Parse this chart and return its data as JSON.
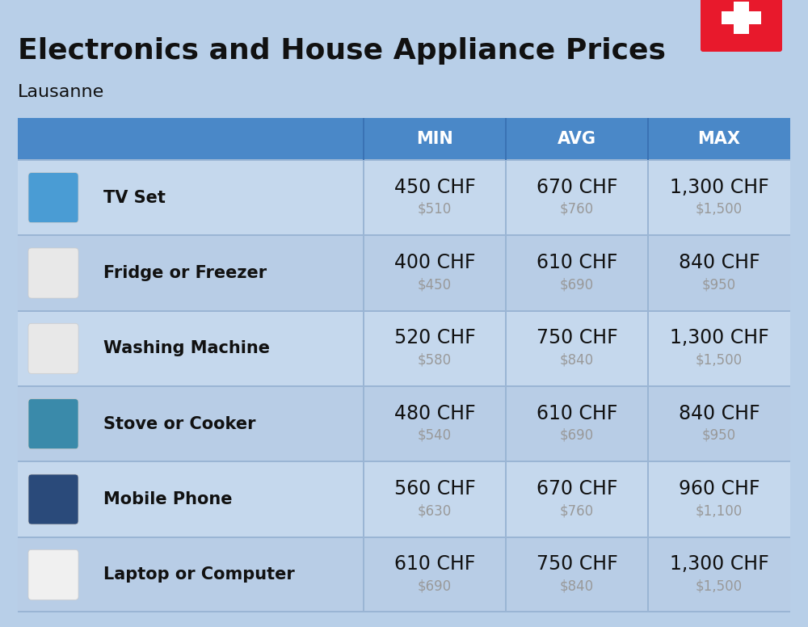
{
  "title": "Electronics and House Appliance Prices",
  "subtitle": "Lausanne",
  "background_color": "#b8cfe8",
  "header_color": "#4a88c8",
  "header_text_color": "#ffffff",
  "row_colors": [
    "#c5d8ed",
    "#b8cde6"
  ],
  "divider_color": "#9ab5d4",
  "text_dark": "#111111",
  "text_gray": "#999999",
  "columns": [
    "MIN",
    "AVG",
    "MAX"
  ],
  "rows": [
    {
      "label": "TV Set",
      "min_chf": "450 CHF",
      "min_usd": "$510",
      "avg_chf": "670 CHF",
      "avg_usd": "$760",
      "max_chf": "1,300 CHF",
      "max_usd": "$1,500"
    },
    {
      "label": "Fridge or Freezer",
      "min_chf": "400 CHF",
      "min_usd": "$450",
      "avg_chf": "610 CHF",
      "avg_usd": "$690",
      "max_chf": "840 CHF",
      "max_usd": "$950"
    },
    {
      "label": "Washing Machine",
      "min_chf": "520 CHF",
      "min_usd": "$580",
      "avg_chf": "750 CHF",
      "avg_usd": "$840",
      "max_chf": "1,300 CHF",
      "max_usd": "$1,500"
    },
    {
      "label": "Stove or Cooker",
      "min_chf": "480 CHF",
      "min_usd": "$540",
      "avg_chf": "610 CHF",
      "avg_usd": "$690",
      "max_chf": "840 CHF",
      "max_usd": "$950"
    },
    {
      "label": "Mobile Phone",
      "min_chf": "560 CHF",
      "min_usd": "$630",
      "avg_chf": "670 CHF",
      "avg_usd": "$760",
      "max_chf": "960 CHF",
      "max_usd": "$1,100"
    },
    {
      "label": "Laptop or Computer",
      "min_chf": "610 CHF",
      "min_usd": "$690",
      "avg_chf": "750 CHF",
      "avg_usd": "$840",
      "max_chf": "1,300 CHF",
      "max_usd": "$1,500"
    }
  ],
  "flag_color": "#e8192c",
  "title_fontsize": 26,
  "subtitle_fontsize": 16,
  "header_fontsize": 15,
  "label_fontsize": 15,
  "chf_fontsize": 17,
  "usd_fontsize": 12
}
